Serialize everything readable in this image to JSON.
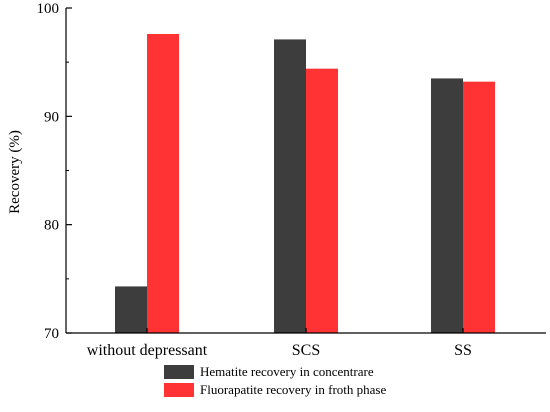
{
  "chart_data": {
    "type": "bar",
    "title": "",
    "xlabel": "",
    "ylabel": "Recovery (%)",
    "ylim": [
      70,
      100
    ],
    "yticks": [
      70,
      80,
      90,
      100
    ],
    "categories": [
      "without depressant",
      "SCS",
      "SS"
    ],
    "series": [
      {
        "name": "Hematite recovery in concentrare",
        "values": [
          74.3,
          97.1,
          93.5
        ],
        "color": "#3d3d3d"
      },
      {
        "name": "Fluorapatite recovery in froth phase",
        "values": [
          97.6,
          94.4,
          93.2
        ],
        "color": "#ff3333"
      }
    ],
    "legend_position": "bottom-center",
    "grid": false
  }
}
